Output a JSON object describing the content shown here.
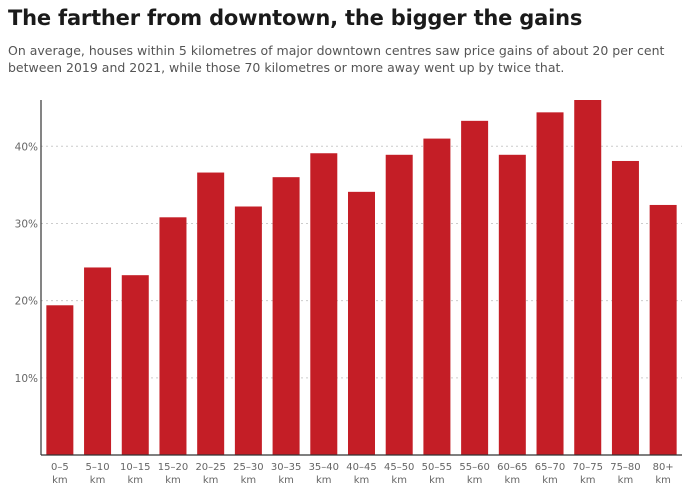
{
  "chart_data": {
    "type": "bar",
    "title": "The farther from downtown, the bigger the gains",
    "subtitle": "On average, houses within 5 kilometres of major downtown centres saw price gains of about 20 per cent between 2019 and 2021, while those 70 kilometres or more away went up by twice that.",
    "categories": [
      [
        "0–5",
        "km"
      ],
      [
        "5–10",
        "km"
      ],
      [
        "10–15",
        "km"
      ],
      [
        "15–20",
        "km"
      ],
      [
        "20–25",
        "km"
      ],
      [
        "25–30",
        "km"
      ],
      [
        "30–35",
        "km"
      ],
      [
        "35–40",
        "km"
      ],
      [
        "40–45",
        "km"
      ],
      [
        "45–50",
        "km"
      ],
      [
        "50–55",
        "km"
      ],
      [
        "55–60",
        "km"
      ],
      [
        "60–65",
        "km"
      ],
      [
        "65–70",
        "km"
      ],
      [
        "70–75",
        "km"
      ],
      [
        "75–80",
        "km"
      ],
      [
        "80+",
        "km"
      ]
    ],
    "values": [
      19.4,
      24.3,
      23.3,
      30.8,
      36.6,
      32.2,
      36.0,
      39.1,
      34.1,
      38.9,
      41.0,
      43.3,
      38.9,
      44.4,
      46.0,
      38.1,
      32.4
    ],
    "yticks": [
      10,
      20,
      30,
      40
    ],
    "ytick_labels": [
      "10%",
      "20%",
      "30%",
      "40%"
    ],
    "ylim": [
      0,
      46
    ],
    "xlabel": "",
    "ylabel": "",
    "grid": true,
    "colors": {
      "bar": "#c41e26",
      "grid": "#cccccc",
      "axis": "#333333"
    }
  }
}
